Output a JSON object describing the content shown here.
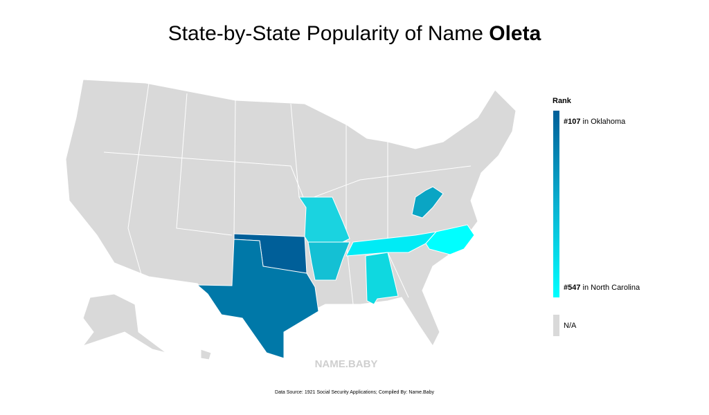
{
  "header": {
    "title": "State-by-State Popularity of Name",
    "name": "Oleta"
  },
  "legend": {
    "title": "Rank",
    "top": {
      "rank": "#107",
      "state": "in Oklahoma"
    },
    "bottom": {
      "rank": "#547",
      "state": "in North Carolina"
    },
    "na": "N/A"
  },
  "watermark": "NAME.BABY",
  "footer": {
    "source": "Data Source: 1921 Social Security Applications; Compiled By: Name.Baby"
  }
}
